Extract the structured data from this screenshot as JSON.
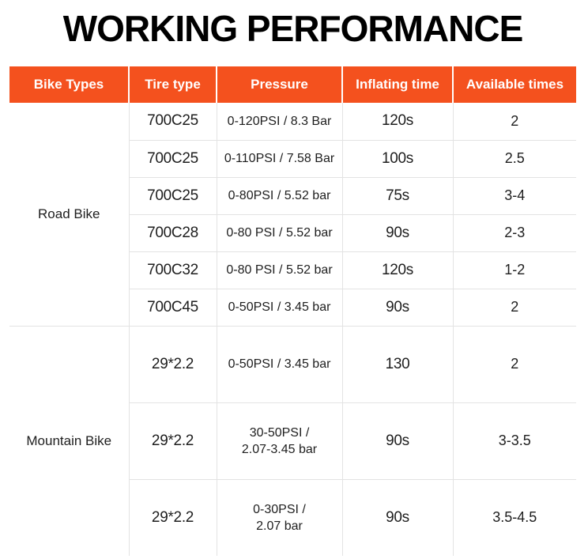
{
  "page": {
    "title": "WORKING PERFORMANCE"
  },
  "colors": {
    "accent_orange": "#F4511E",
    "grid_line": "#e3e3e3",
    "text": "#1e1e1e",
    "header_text": "#ffffff"
  },
  "table": {
    "columns": [
      "Bike Types",
      "Tire type",
      "Pressure",
      "Inflating time",
      "Available times"
    ],
    "sections": [
      {
        "label": "Road Bike",
        "rows": [
          {
            "tire": "700C25",
            "pressure": "0-120PSI / 8.3 Bar",
            "time": "120s",
            "available": "2"
          },
          {
            "tire": "700C25",
            "pressure": "0-110PSI / 7.58 Bar",
            "time": "100s",
            "available": "2.5"
          },
          {
            "tire": "700C25",
            "pressure": "0-80PSI / 5.52 bar",
            "time": "75s",
            "available": "3-4"
          },
          {
            "tire": "700C28",
            "pressure": "0-80 PSI / 5.52 bar",
            "time": "90s",
            "available": "2-3"
          },
          {
            "tire": "700C32",
            "pressure": "0-80 PSI / 5.52 bar",
            "time": "120s",
            "available": "1-2"
          },
          {
            "tire": "700C45",
            "pressure": "0-50PSI / 3.45 bar",
            "time": "90s",
            "available": "2"
          }
        ]
      },
      {
        "label": "Mountain Bike",
        "rows": [
          {
            "tire": "29*2.2",
            "pressure": "0-50PSI / 3.45 bar",
            "time": "130",
            "available": "2"
          },
          {
            "tire": "29*2.2",
            "pressure": "30-50PSI /\n2.07-3.45 bar",
            "time": "90s",
            "available": "3-3.5"
          },
          {
            "tire": "29*2.2",
            "pressure": "0-30PSI /\n2.07 bar",
            "time": "90s",
            "available": "3.5-4.5"
          }
        ]
      }
    ]
  },
  "chart_data": {
    "type": "table",
    "title": "WORKING PERFORMANCE",
    "columns": [
      "Bike Types",
      "Tire type",
      "Pressure",
      "Inflating time",
      "Available times"
    ],
    "rows": [
      [
        "Road Bike",
        "700C25",
        "0-120PSI / 8.3 Bar",
        "120s",
        "2"
      ],
      [
        "Road Bike",
        "700C25",
        "0-110PSI / 7.58 Bar",
        "100s",
        "2.5"
      ],
      [
        "Road Bike",
        "700C25",
        "0-80PSI / 5.52 bar",
        "75s",
        "3-4"
      ],
      [
        "Road Bike",
        "700C28",
        "0-80 PSI / 5.52 bar",
        "90s",
        "2-3"
      ],
      [
        "Road Bike",
        "700C32",
        "0-80 PSI / 5.52 bar",
        "120s",
        "1-2"
      ],
      [
        "Road Bike",
        "700C45",
        "0-50PSI / 3.45 bar",
        "90s",
        "2"
      ],
      [
        "Mountain Bike",
        "29*2.2",
        "0-50PSI / 3.45 bar",
        "130",
        "2"
      ],
      [
        "Mountain Bike",
        "29*2.2",
        "30-50PSI / 2.07-3.45 bar",
        "90s",
        "3-3.5"
      ],
      [
        "Mountain Bike",
        "29*2.2",
        "0-30PSI / 2.07 bar",
        "90s",
        "3.5-4.5"
      ]
    ]
  }
}
